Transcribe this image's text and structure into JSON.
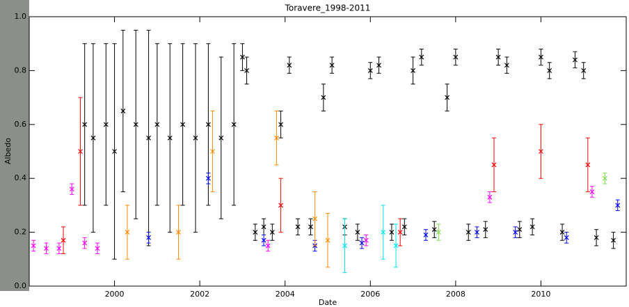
{
  "chart_data": {
    "type": "scatter",
    "title": "Toravere_1998-2011",
    "x_label": "Date",
    "y_label": "Albedo",
    "xlim": [
      1998,
      2012
    ],
    "ylim": [
      0,
      1
    ],
    "xticks": [
      2000,
      2002,
      2004,
      2006,
      2008,
      2010
    ],
    "yticks": [
      {
        "value": 0,
        "label": "0.0"
      },
      0.2,
      0.4,
      0.6,
      0.8,
      {
        "value": 1,
        "label": "1.0"
      }
    ],
    "series": [
      {
        "color": "#000000",
        "x": [
          1999.3,
          1999.5,
          1999.8,
          2000.0,
          2000.2,
          2000.5,
          2000.8,
          2001.0,
          2001.3,
          2001.6,
          2001.9,
          2002.2,
          2002.5,
          2002.8,
          2003.0,
          2003.1,
          2003.3,
          2003.5,
          2003.7,
          2003.9,
          2004.1,
          2004.3,
          2004.6,
          2004.9,
          2005.1,
          2005.4,
          2005.7,
          2006.0,
          2006.2,
          2006.5,
          2006.8,
          2007.0,
          2007.2,
          2007.5,
          2007.8,
          2008.0,
          2008.3,
          2008.7,
          2009.0,
          2009.2,
          2009.5,
          2009.8,
          2010.0,
          2010.2,
          2010.5,
          2010.8,
          2011.0,
          2011.3,
          2011.7
        ],
        "values": [
          0.6,
          0.55,
          0.6,
          0.5,
          0.65,
          0.6,
          0.55,
          0.6,
          0.55,
          0.6,
          0.55,
          0.6,
          0.55,
          0.6,
          0.85,
          0.8,
          0.2,
          0.22,
          0.2,
          0.6,
          0.82,
          0.22,
          0.22,
          0.7,
          0.82,
          0.22,
          0.2,
          0.8,
          0.82,
          0.2,
          0.22,
          0.8,
          0.85,
          0.21,
          0.7,
          0.85,
          0.2,
          0.21,
          0.85,
          0.82,
          0.21,
          0.22,
          0.85,
          0.8,
          0.2,
          0.84,
          0.8,
          0.18,
          0.17
        ],
        "errors": [
          0.3,
          0.35,
          0.3,
          0.4,
          0.3,
          0.35,
          0.4,
          0.3,
          0.35,
          0.3,
          0.35,
          0.3,
          0.3,
          0.3,
          0.05,
          0.05,
          0.03,
          0.03,
          0.03,
          0.05,
          0.03,
          0.03,
          0.03,
          0.05,
          0.03,
          0.03,
          0.03,
          0.03,
          0.03,
          0.03,
          0.03,
          0.05,
          0.03,
          0.03,
          0.05,
          0.03,
          0.03,
          0.03,
          0.03,
          0.03,
          0.03,
          0.03,
          0.03,
          0.03,
          0.03,
          0.03,
          0.03,
          0.03,
          0.03
        ]
      },
      {
        "color": "#ff00ff",
        "x": [
          1998.1,
          1998.4,
          1998.7,
          1999.0,
          1999.3,
          1999.6,
          2003.6,
          2005.9,
          2008.8,
          2011.2
        ],
        "values": [
          0.15,
          0.14,
          0.14,
          0.36,
          0.16,
          0.14,
          0.15,
          0.17,
          0.33,
          0.35
        ],
        "errors": [
          0.02,
          0.02,
          0.02,
          0.02,
          0.02,
          0.02,
          0.02,
          0.02,
          0.02,
          0.02
        ]
      },
      {
        "color": "#ff0000",
        "x": [
          1998.8,
          1999.2,
          2003.9,
          2006.7,
          2008.9,
          2010.0,
          2011.1
        ],
        "values": [
          0.17,
          0.5,
          0.3,
          0.2,
          0.45,
          0.5,
          0.45
        ],
        "errors": [
          0.05,
          0.2,
          0.1,
          0.05,
          0.1,
          0.1,
          0.1
        ]
      },
      {
        "color": "#0000ff",
        "x": [
          2000.8,
          2002.2,
          2003.5,
          2004.7,
          2005.8,
          2007.3,
          2008.5,
          2009.4,
          2010.6,
          2011.8
        ],
        "values": [
          0.18,
          0.4,
          0.17,
          0.15,
          0.16,
          0.19,
          0.2,
          0.2,
          0.18,
          0.3
        ],
        "errors": [
          0.02,
          0.02,
          0.02,
          0.02,
          0.02,
          0.02,
          0.02,
          0.02,
          0.02,
          0.02
        ]
      },
      {
        "color": "#ff8c00",
        "x": [
          2000.3,
          2001.5,
          2002.3,
          2003.8,
          2004.7,
          2005.0
        ],
        "values": [
          0.2,
          0.2,
          0.5,
          0.55,
          0.25,
          0.17
        ],
        "errors": [
          0.1,
          0.1,
          0.15,
          0.1,
          0.1,
          0.1
        ]
      },
      {
        "color": "#00e5ee",
        "x": [
          2005.4,
          2006.3,
          2006.6
        ],
        "values": [
          0.15,
          0.2,
          0.15
        ],
        "errors": [
          0.1,
          0.1,
          0.08
        ]
      },
      {
        "color": "#7fdc50",
        "x": [
          2007.6,
          2011.5
        ],
        "values": [
          0.2,
          0.4
        ],
        "errors": [
          0.03,
          0.02
        ]
      }
    ]
  }
}
